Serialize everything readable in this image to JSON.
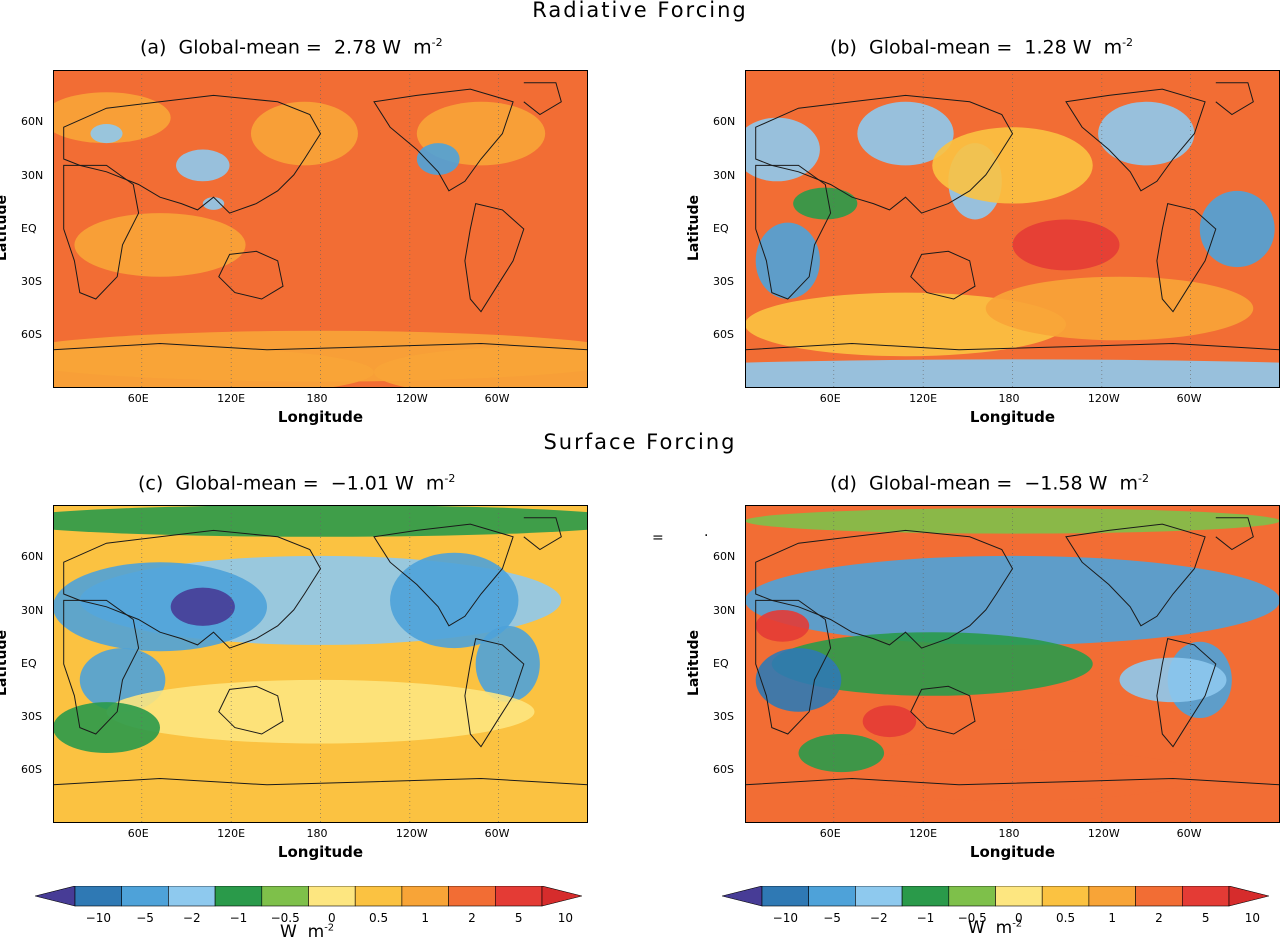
{
  "sections": {
    "top": "Radiative Forcing",
    "bottom": "Surface  Forcing"
  },
  "stray_glyphs": [
    "=",
    "·"
  ],
  "colors": {
    "palette": [
      "#473c96",
      "#2f79b4",
      "#4ea2d9",
      "#8ec9ee",
      "#2a9a4a",
      "#7ec04a",
      "#fde680",
      "#fbc241",
      "#f8a437",
      "#f26d34",
      "#e43b35",
      "#d62c2c"
    ],
    "coast": "#1a1a1a"
  },
  "chart_data": [
    {
      "type": "heatmap",
      "panel_label": "(a)",
      "title_prefix": "Global-mean =",
      "value": "2.78",
      "unit": "W  m",
      "unit_exp": "-2",
      "xlabel": "Longitude",
      "ylabel": "Latitude",
      "x_ticks": [
        "60E",
        "120E",
        "180",
        "120W",
        "60W"
      ],
      "y_ticks": [
        "60N",
        "30N",
        "EQ",
        "30S",
        "60S"
      ],
      "base_level": 9,
      "blobs": [
        [
          0.2,
          0.55,
          0.16,
          0.1,
          8
        ],
        [
          0.47,
          0.2,
          0.1,
          0.1,
          8
        ],
        [
          0.8,
          0.2,
          0.12,
          0.1,
          8
        ],
        [
          0.1,
          0.15,
          0.12,
          0.08,
          8
        ],
        [
          0.5,
          0.9,
          0.6,
          0.08,
          8
        ],
        [
          0.2,
          0.95,
          0.4,
          0.08,
          8
        ],
        [
          0.9,
          0.95,
          0.3,
          0.08,
          8
        ],
        [
          0.28,
          0.3,
          0.05,
          0.05,
          3
        ],
        [
          0.72,
          0.28,
          0.04,
          0.05,
          2
        ],
        [
          0.1,
          0.2,
          0.03,
          0.03,
          3
        ],
        [
          0.3,
          0.42,
          0.02,
          0.02,
          3
        ]
      ]
    },
    {
      "type": "heatmap",
      "panel_label": "(b)",
      "title_prefix": "Global-mean =",
      "value": "1.28",
      "unit": "W  m",
      "unit_exp": "-2",
      "xlabel": "Longitude",
      "ylabel": "Latitude",
      "x_ticks": [
        "60E",
        "120E",
        "180",
        "120W",
        "60W"
      ],
      "y_ticks": [
        "60N",
        "30N",
        "EQ",
        "30S",
        "60S"
      ],
      "base_level": 9,
      "blobs": [
        [
          0.08,
          0.6,
          0.06,
          0.12,
          2
        ],
        [
          0.06,
          0.25,
          0.08,
          0.1,
          3
        ],
        [
          0.3,
          0.2,
          0.09,
          0.1,
          3
        ],
        [
          0.43,
          0.35,
          0.05,
          0.12,
          3
        ],
        [
          0.75,
          0.2,
          0.09,
          0.1,
          3
        ],
        [
          0.92,
          0.5,
          0.07,
          0.12,
          2
        ],
        [
          0.5,
          0.3,
          0.15,
          0.12,
          7
        ],
        [
          0.3,
          0.8,
          0.3,
          0.1,
          7
        ],
        [
          0.7,
          0.75,
          0.25,
          0.1,
          8
        ],
        [
          0.5,
          0.97,
          0.9,
          0.06,
          3
        ],
        [
          0.15,
          0.42,
          0.06,
          0.05,
          4
        ],
        [
          0.6,
          0.55,
          0.1,
          0.08,
          10
        ]
      ]
    },
    {
      "type": "heatmap",
      "panel_label": "(c)",
      "title_prefix": "Global-mean =",
      "value": "−1.01",
      "unit": "W  m",
      "unit_exp": "-2",
      "xlabel": "Longitude",
      "ylabel": "Latitude",
      "x_ticks": [
        "60E",
        "120E",
        "180",
        "120W",
        "60W"
      ],
      "y_ticks": [
        "60N",
        "30N",
        "EQ",
        "30S",
        "60S"
      ],
      "base_level": 7,
      "blobs": [
        [
          0.5,
          0.3,
          0.45,
          0.14,
          3
        ],
        [
          0.2,
          0.32,
          0.2,
          0.14,
          2
        ],
        [
          0.28,
          0.32,
          0.06,
          0.06,
          0
        ],
        [
          0.13,
          0.55,
          0.08,
          0.1,
          2
        ],
        [
          0.75,
          0.3,
          0.12,
          0.15,
          2
        ],
        [
          0.85,
          0.5,
          0.06,
          0.12,
          2
        ],
        [
          0.5,
          0.65,
          0.4,
          0.1,
          6
        ],
        [
          0.5,
          0.05,
          0.6,
          0.05,
          4
        ],
        [
          0.1,
          0.7,
          0.1,
          0.08,
          4
        ]
      ]
    },
    {
      "type": "heatmap",
      "panel_label": "(d)",
      "title_prefix": "Global-mean =",
      "value": "−1.58",
      "unit": "W  m",
      "unit_exp": "-2",
      "xlabel": "Longitude",
      "ylabel": "Latitude",
      "x_ticks": [
        "60E",
        "120E",
        "180",
        "120W",
        "60W"
      ],
      "y_ticks": [
        "60N",
        "30N",
        "EQ",
        "30S",
        "60S"
      ],
      "base_level": 9,
      "blobs": [
        [
          0.5,
          0.3,
          0.5,
          0.14,
          2
        ],
        [
          0.35,
          0.5,
          0.3,
          0.1,
          4
        ],
        [
          0.1,
          0.55,
          0.08,
          0.1,
          1
        ],
        [
          0.85,
          0.55,
          0.06,
          0.12,
          2
        ],
        [
          0.5,
          0.05,
          0.5,
          0.04,
          5
        ],
        [
          0.07,
          0.38,
          0.05,
          0.05,
          10
        ],
        [
          0.27,
          0.68,
          0.05,
          0.05,
          10
        ],
        [
          0.5,
          0.85,
          0.35,
          0.08,
          9
        ],
        [
          0.8,
          0.55,
          0.1,
          0.07,
          3
        ],
        [
          0.18,
          0.78,
          0.08,
          0.06,
          4
        ]
      ]
    }
  ],
  "colorbars": [
    {
      "labels": [
        "−10",
        "−5",
        "−2",
        "−1",
        "−0.5",
        "0",
        "0.5",
        "1",
        "2",
        "5",
        "10"
      ],
      "unit": "W  m",
      "unit_exp": "-2"
    },
    {
      "labels": [
        "−10",
        "−5",
        "−2",
        "−1",
        "−0.5",
        "0",
        "0.5",
        "1",
        "2",
        "5",
        "10"
      ],
      "unit": "W  m",
      "unit_exp": "-2"
    }
  ]
}
